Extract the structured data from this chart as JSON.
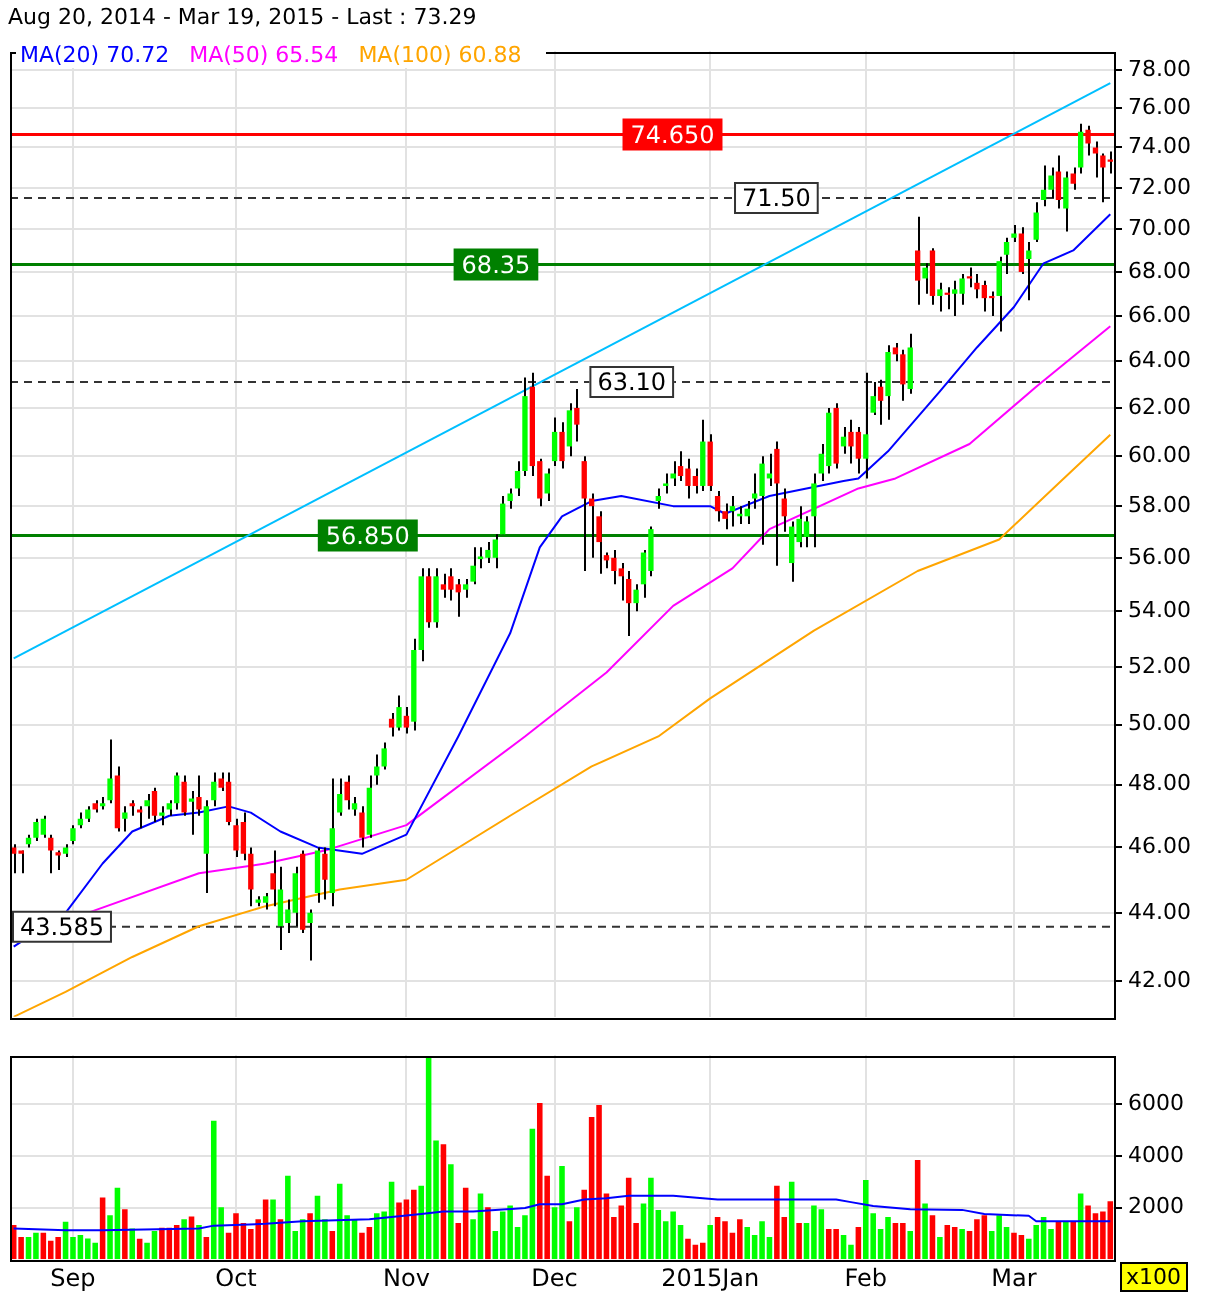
{
  "chart_data": [
    {
      "type": "candlestick",
      "title": "Aug 20, 2014 - Mar 19, 2015 - Last : 73.29",
      "categories": [
        null,
        null,
        null,
        null,
        null,
        null,
        null,
        null,
        null,
        null,
        null,
        null,
        null,
        null,
        null,
        null,
        null,
        null,
        null,
        null,
        null,
        null,
        null,
        null,
        null,
        null,
        null,
        null,
        null,
        null,
        null,
        null,
        null,
        null,
        null,
        null,
        null,
        null,
        null,
        null,
        null,
        null,
        null,
        null,
        null,
        null,
        null,
        null,
        null,
        null,
        null,
        null,
        null,
        null,
        null,
        null,
        null,
        null,
        null,
        null,
        null,
        null,
        null,
        null,
        null,
        null,
        null,
        null,
        null,
        null,
        null,
        null,
        null,
        null,
        null,
        null,
        null,
        null,
        null,
        null,
        null,
        null,
        null,
        null,
        null,
        null,
        null,
        null,
        null,
        null,
        null,
        null,
        null,
        null,
        null,
        null,
        null,
        null,
        null,
        null,
        null,
        null,
        null,
        null,
        null,
        null,
        null,
        null,
        null,
        null,
        null,
        null,
        null,
        null,
        null,
        null,
        null,
        null,
        null,
        null,
        null,
        null,
        null,
        null,
        null,
        null,
        null,
        null,
        null,
        null,
        null,
        null,
        null,
        null,
        null,
        null,
        null,
        null,
        null,
        null,
        null,
        null,
        null,
        null,
        null,
        null,
        null,
        null,
        null
      ],
      "ohlc": [
        [
          46.0,
          46.1,
          45.2,
          45.8
        ],
        [
          45.9,
          45.9,
          45.2,
          45.8
        ],
        [
          46.1,
          46.4,
          46.0,
          46.3
        ],
        [
          46.3,
          46.9,
          46.2,
          46.8
        ],
        [
          46.4,
          47.0,
          46.3,
          46.9
        ],
        [
          46.3,
          46.4,
          45.2,
          45.9
        ],
        [
          45.85,
          45.9,
          45.3,
          45.75
        ],
        [
          45.8,
          46.1,
          45.7,
          46.0
        ],
        [
          46.2,
          46.7,
          46.1,
          46.6
        ],
        [
          46.7,
          47.1,
          46.6,
          46.9
        ],
        [
          46.9,
          47.3,
          46.8,
          47.2
        ],
        [
          47.4,
          47.5,
          47.1,
          47.2
        ],
        [
          47.3,
          47.6,
          47.2,
          47.4
        ],
        [
          47.5,
          49.5,
          47.4,
          48.2
        ],
        [
          48.3,
          48.6,
          46.5,
          46.6
        ],
        [
          46.9,
          47.3,
          46.5,
          47.1
        ],
        [
          47.4,
          47.5,
          47.0,
          47.3
        ],
        [
          47.2,
          47.3,
          46.6,
          47.1
        ],
        [
          47.3,
          47.7,
          46.9,
          47.5
        ],
        [
          47.8,
          47.9,
          46.8,
          47.0
        ],
        [
          47.0,
          47.3,
          46.7,
          47.1
        ],
        [
          47.2,
          47.5,
          47.0,
          47.4
        ],
        [
          47.4,
          48.4,
          47.2,
          48.3
        ],
        [
          48.1,
          48.3,
          47.0,
          47.1
        ],
        [
          47.45,
          47.8,
          46.4,
          47.55
        ],
        [
          47.6,
          48.3,
          47.0,
          47.2
        ],
        [
          45.8,
          47.5,
          44.6,
          47.3
        ],
        [
          47.5,
          48.4,
          47.3,
          48.1
        ],
        [
          48.2,
          48.4,
          47.8,
          47.9
        ],
        [
          48.1,
          48.4,
          46.7,
          46.8
        ],
        [
          46.7,
          46.9,
          45.7,
          45.9
        ],
        [
          46.8,
          47.1,
          45.6,
          45.8
        ],
        [
          45.8,
          46.0,
          44.2,
          44.7
        ],
        [
          44.3,
          44.5,
          44.2,
          44.4
        ],
        [
          44.3,
          44.6,
          44.1,
          44.5
        ],
        [
          45.2,
          45.9,
          44.2,
          44.7
        ],
        [
          43.6,
          45.4,
          42.9,
          44.7
        ],
        [
          43.7,
          44.4,
          43.4,
          44.1
        ],
        [
          44.0,
          45.4,
          43.6,
          45.2
        ],
        [
          45.8,
          45.9,
          43.4,
          43.5
        ],
        [
          43.7,
          44.1,
          42.6,
          44.0
        ],
        [
          44.6,
          46.0,
          44.3,
          45.9
        ],
        [
          45.8,
          46.0,
          44.4,
          45.0
        ],
        [
          44.6,
          48.2,
          44.2,
          46.6
        ],
        [
          47.1,
          48.2,
          47.0,
          47.7
        ],
        [
          48.1,
          48.3,
          47.2,
          47.5
        ],
        [
          47.2,
          47.6,
          47.0,
          47.4
        ],
        [
          47.1,
          47.3,
          46.0,
          46.3
        ],
        [
          46.4,
          48.3,
          46.3,
          47.9
        ],
        [
          48.3,
          49.0,
          48.0,
          48.6
        ],
        [
          48.6,
          49.4,
          48.5,
          49.2
        ],
        [
          50.2,
          50.4,
          49.6,
          49.9
        ],
        [
          49.9,
          51.0,
          49.8,
          50.6
        ],
        [
          50.3,
          50.6,
          49.7,
          49.9
        ],
        [
          50.1,
          53.0,
          49.8,
          52.6
        ],
        [
          52.6,
          55.6,
          52.2,
          55.3
        ],
        [
          55.3,
          55.6,
          53.4,
          53.6
        ],
        [
          53.6,
          55.6,
          53.4,
          55.3
        ],
        [
          55.0,
          55.4,
          54.5,
          54.8
        ],
        [
          55.3,
          55.6,
          54.4,
          54.8
        ],
        [
          55.0,
          55.2,
          53.8,
          54.7
        ],
        [
          54.8,
          55.2,
          54.5,
          55.0
        ],
        [
          55.1,
          56.4,
          55.0,
          55.7
        ],
        [
          55.95,
          56.4,
          55.6,
          56.05
        ],
        [
          56.0,
          56.6,
          55.8,
          56.3
        ],
        [
          56.0,
          56.9,
          55.6,
          56.7
        ],
        [
          56.9,
          58.4,
          56.9,
          58.1
        ],
        [
          58.2,
          58.7,
          57.9,
          58.5
        ],
        [
          58.7,
          59.8,
          58.4,
          59.4
        ],
        [
          59.4,
          63.3,
          59.2,
          62.5
        ],
        [
          62.9,
          63.5,
          59.2,
          59.6
        ],
        [
          59.8,
          59.9,
          58.0,
          58.3
        ],
        [
          58.5,
          59.5,
          58.2,
          59.3
        ],
        [
          59.8,
          61.6,
          59.6,
          61.0
        ],
        [
          61.0,
          61.4,
          59.5,
          59.8
        ],
        [
          60.4,
          62.2,
          60.0,
          61.9
        ],
        [
          62.0,
          62.8,
          60.6,
          61.3
        ],
        [
          59.8,
          60.0,
          55.5,
          58.3
        ],
        [
          58.3,
          58.5,
          56.0,
          58.0
        ],
        [
          57.6,
          57.8,
          55.4,
          56.6
        ],
        [
          56.1,
          56.2,
          55.6,
          55.9
        ],
        [
          56.0,
          56.3,
          55.0,
          55.5
        ],
        [
          55.6,
          55.8,
          54.4,
          55.3
        ],
        [
          55.2,
          55.5,
          53.1,
          54.3
        ],
        [
          54.3,
          55.0,
          54.0,
          54.8
        ],
        [
          55.0,
          56.3,
          54.5,
          56.2
        ],
        [
          55.5,
          57.2,
          55.3,
          57.1
        ],
        [
          58.2,
          58.7,
          57.9,
          58.4
        ],
        [
          58.8,
          59.3,
          58.5,
          58.9
        ],
        [
          59.1,
          59.8,
          58.8,
          59.3
        ],
        [
          59.6,
          60.2,
          59.0,
          59.2
        ],
        [
          59.5,
          59.9,
          58.3,
          58.8
        ],
        [
          59.2,
          59.5,
          58.5,
          58.8
        ],
        [
          58.8,
          61.5,
          58.6,
          60.6
        ],
        [
          60.6,
          60.9,
          58.6,
          58.8
        ],
        [
          58.4,
          58.6,
          57.4,
          57.8
        ],
        [
          57.8,
          58.1,
          57.1,
          57.5
        ],
        [
          57.8,
          58.4,
          57.2,
          58.0
        ],
        [
          57.6,
          58.0,
          57.3,
          57.7
        ],
        [
          57.6,
          58.2,
          57.3,
          57.9
        ],
        [
          58.3,
          59.3,
          57.9,
          58.5
        ],
        [
          58.4,
          60.0,
          56.5,
          59.7
        ],
        [
          59.1,
          60.1,
          58.8,
          59.3
        ],
        [
          60.3,
          60.6,
          55.7,
          58.9
        ],
        [
          58.3,
          58.7,
          57.0,
          57.6
        ],
        [
          55.8,
          57.4,
          55.1,
          57.2
        ],
        [
          56.6,
          58.0,
          56.4,
          57.5
        ],
        [
          56.8,
          57.6,
          56.4,
          57.4
        ],
        [
          57.6,
          59.3,
          56.4,
          58.9
        ],
        [
          59.3,
          60.5,
          59.0,
          60.1
        ],
        [
          59.6,
          62.0,
          59.3,
          61.8
        ],
        [
          62.0,
          62.2,
          59.5,
          59.7
        ],
        [
          60.4,
          61.2,
          60.1,
          60.8
        ],
        [
          61.0,
          61.5,
          59.7,
          60.4
        ],
        [
          61.0,
          61.2,
          59.3,
          59.9
        ],
        [
          59.9,
          63.5,
          59.1,
          60.9
        ],
        [
          61.8,
          63.1,
          61.7,
          62.5
        ],
        [
          62.9,
          63.2,
          61.3,
          62.3
        ],
        [
          62.5,
          64.7,
          61.5,
          64.4
        ],
        [
          64.6,
          64.8,
          64.0,
          64.3
        ],
        [
          64.3,
          64.5,
          62.3,
          63.0
        ],
        [
          62.8,
          65.2,
          62.6,
          64.6
        ],
        [
          69.0,
          70.6,
          66.5,
          67.6
        ],
        [
          67.7,
          68.4,
          67.0,
          68.2
        ],
        [
          69.0,
          69.1,
          66.5,
          66.9
        ],
        [
          66.9,
          67.5,
          66.2,
          67.2
        ],
        [
          67.05,
          67.3,
          66.3,
          66.95
        ],
        [
          67.0,
          67.6,
          66.0,
          67.2
        ],
        [
          67.0,
          67.9,
          66.5,
          67.7
        ],
        [
          67.8,
          68.2,
          67.3,
          67.7
        ],
        [
          67.5,
          67.9,
          66.8,
          67.2
        ],
        [
          67.4,
          67.6,
          66.2,
          66.8
        ],
        [
          66.9,
          67.1,
          66.0,
          66.8
        ],
        [
          66.9,
          68.7,
          65.3,
          68.5
        ],
        [
          68.8,
          69.6,
          67.9,
          69.4
        ],
        [
          69.6,
          70.2,
          69.4,
          69.8
        ],
        [
          69.8,
          70.1,
          67.9,
          68.0
        ],
        [
          68.6,
          69.4,
          66.7,
          69.0
        ],
        [
          69.5,
          71.3,
          69.4,
          70.8
        ],
        [
          71.4,
          73.1,
          71.1,
          71.9
        ],
        [
          71.9,
          73.0,
          71.5,
          72.6
        ],
        [
          72.8,
          73.6,
          71.0,
          71.4
        ],
        [
          71.0,
          72.8,
          69.9,
          72.5
        ],
        [
          72.7,
          73.0,
          71.9,
          72.2
        ],
        [
          73.0,
          75.2,
          72.7,
          74.8
        ],
        [
          74.9,
          75.1,
          73.6,
          74.2
        ],
        [
          74.0,
          74.3,
          72.5,
          73.7
        ],
        [
          73.6,
          73.7,
          71.3,
          73.0
        ],
        [
          73.4,
          73.8,
          72.7,
          73.29
        ]
      ],
      "series": [
        {
          "type": "line",
          "name": "MA(20) 70.72",
          "color": "#0000ff",
          "values": [
            43.0,
            null,
            null,
            null,
            null,
            null,
            null,
            44.0,
            null,
            null,
            null,
            null,
            45.5,
            null,
            null,
            null,
            46.5,
            null,
            null,
            null,
            null,
            47.0,
            null,
            null,
            null,
            47.1,
            null,
            null,
            null,
            47.3,
            null,
            null,
            47.1,
            null,
            null,
            null,
            46.5,
            null,
            null,
            null,
            null,
            46.0,
            null,
            null,
            null,
            null,
            null,
            45.8,
            null,
            null,
            null,
            null,
            null,
            46.4,
            null,
            null,
            null,
            null,
            null,
            null,
            49.6,
            null,
            null,
            null,
            null,
            null,
            null,
            53.2,
            null,
            null,
            null,
            56.4,
            null,
            null,
            57.6,
            null,
            null,
            null,
            58.2,
            null,
            null,
            null,
            58.4,
            null,
            null,
            null,
            null,
            null,
            null,
            58.0,
            null,
            null,
            null,
            null,
            58.0,
            null,
            57.7,
            null,
            null,
            null,
            null,
            null,
            58.4,
            null,
            null,
            null,
            null,
            58.7,
            null,
            null,
            null,
            null,
            59.0,
            null,
            59.1,
            null,
            null,
            null,
            60.2,
            null,
            null,
            null,
            null,
            null,
            null,
            62.7,
            null,
            null,
            null,
            null,
            64.6,
            null,
            null,
            null,
            null,
            66.4,
            null,
            null,
            null,
            68.4,
            null,
            null,
            null,
            69.0,
            null,
            null,
            null,
            null,
            70.72
          ]
        },
        {
          "type": "line",
          "name": "MA(50) 65.54",
          "color": "#ff00ff",
          "values": [
            null,
            null,
            null,
            null,
            null,
            null,
            null,
            null,
            null,
            null,
            44.0,
            null,
            null,
            null,
            null,
            null,
            null,
            null,
            null,
            null,
            null,
            null,
            null,
            null,
            null,
            45.2,
            null,
            null,
            null,
            null,
            null,
            null,
            null,
            null,
            45.5,
            null,
            null,
            null,
            null,
            null,
            null,
            null,
            45.9,
            null,
            null,
            null,
            null,
            null,
            null,
            null,
            null,
            null,
            null,
            46.7,
            null,
            null,
            null,
            null,
            null,
            null,
            null,
            null,
            null,
            null,
            null,
            null,
            null,
            null,
            null,
            49.6,
            null,
            null,
            null,
            null,
            null,
            null,
            null,
            null,
            null,
            null,
            51.8,
            null,
            null,
            null,
            null,
            null,
            null,
            null,
            null,
            54.2,
            null,
            null,
            null,
            null,
            null,
            null,
            null,
            55.6,
            null,
            null,
            null,
            null,
            57.1,
            null,
            null,
            null,
            null,
            null,
            null,
            null,
            null,
            null,
            null,
            null,
            58.7,
            null,
            null,
            null,
            null,
            59.1,
            null,
            null,
            null,
            null,
            null,
            null,
            null,
            null,
            null,
            60.5,
            null,
            null,
            null,
            null,
            null,
            null,
            null,
            null,
            62.9,
            null,
            null,
            null,
            null,
            null,
            null,
            null,
            null,
            null,
            65.54
          ]
        },
        {
          "type": "line",
          "name": "MA(100) 60.88",
          "color": "#ffa500",
          "values": [
            41.0,
            null,
            null,
            null,
            null,
            null,
            null,
            41.7,
            null,
            null,
            null,
            null,
            null,
            null,
            null,
            null,
            42.7,
            null,
            null,
            null,
            null,
            null,
            null,
            null,
            null,
            43.6,
            null,
            null,
            null,
            null,
            null,
            null,
            null,
            null,
            44.2,
            null,
            null,
            null,
            null,
            null,
            null,
            null,
            null,
            null,
            44.7,
            null,
            null,
            null,
            null,
            null,
            null,
            null,
            null,
            45.0,
            null,
            null,
            null,
            null,
            null,
            null,
            null,
            null,
            null,
            null,
            null,
            null,
            null,
            47.0,
            null,
            null,
            null,
            null,
            null,
            null,
            null,
            null,
            null,
            null,
            48.6,
            null,
            null,
            null,
            null,
            null,
            null,
            null,
            null,
            49.6,
            null,
            null,
            null,
            null,
            null,
            null,
            50.9,
            null,
            null,
            null,
            null,
            null,
            null,
            null,
            null,
            null,
            null,
            null,
            null,
            null,
            53.3,
            null,
            null,
            null,
            null,
            null,
            null,
            null,
            null,
            null,
            null,
            null,
            null,
            null,
            55.5,
            null,
            null,
            null,
            null,
            null,
            null,
            null,
            null,
            null,
            null,
            56.7,
            null,
            null,
            null,
            null,
            null,
            null,
            null,
            58.9,
            null,
            null,
            null,
            null,
            null,
            null,
            60.88
          ]
        },
        {
          "type": "line",
          "color": "#00bfff",
          "values": [
            52.3,
            null,
            null,
            null,
            null,
            null,
            null,
            null,
            null,
            null,
            null,
            null,
            null,
            null,
            null,
            null,
            null,
            null,
            null,
            null,
            null,
            null,
            null,
            null,
            null,
            null,
            null,
            null,
            null,
            null,
            null,
            null,
            null,
            null,
            null,
            null,
            null,
            null,
            null,
            null,
            null,
            null,
            null,
            null,
            null,
            null,
            null,
            null,
            null,
            null,
            null,
            null,
            null,
            null,
            null,
            null,
            null,
            null,
            null,
            null,
            null,
            null,
            null,
            null,
            null,
            null,
            null,
            null,
            null,
            null,
            null,
            null,
            null,
            null,
            null,
            null,
            null,
            null,
            null,
            null,
            null,
            null,
            null,
            null,
            null,
            null,
            null,
            null,
            null,
            null,
            null,
            null,
            null,
            null,
            null,
            null,
            null,
            null,
            null,
            null,
            null,
            null,
            null,
            null,
            null,
            null,
            null,
            null,
            null,
            null,
            null,
            null,
            null,
            null,
            null,
            null,
            null,
            null,
            null,
            null,
            null,
            null,
            null,
            null,
            null,
            null,
            null,
            null,
            null,
            null,
            null,
            null,
            null,
            null,
            null,
            null,
            null,
            null,
            null,
            null,
            null,
            null,
            null,
            null,
            null,
            null,
            null,
            null,
            77.3
          ]
        }
      ],
      "ylim": [
        41,
        79
      ],
      "yticks": [
        {
          "value": 42,
          "label": "42.00"
        },
        {
          "value": 44,
          "label": "44.00"
        },
        {
          "value": 46,
          "label": "46.00"
        },
        {
          "value": 48,
          "label": "48.00"
        },
        {
          "value": 50,
          "label": "50.00"
        },
        {
          "value": 52,
          "label": "52.00"
        },
        {
          "value": 54,
          "label": "54.00"
        },
        {
          "value": 56,
          "label": "56.00"
        },
        {
          "value": 58,
          "label": "58.00"
        },
        {
          "value": 60,
          "label": "60.00"
        },
        {
          "value": 62,
          "label": "62.00"
        },
        {
          "value": 64,
          "label": "64.00"
        },
        {
          "value": 66,
          "label": "66.00"
        },
        {
          "value": 68,
          "label": "68.00"
        },
        {
          "value": 70,
          "label": "70.00"
        },
        {
          "value": 72,
          "label": "72.00"
        },
        {
          "value": 74,
          "label": "74.00"
        },
        {
          "value": 76,
          "label": "76.00"
        },
        {
          "value": 78,
          "label": "78.00"
        }
      ],
      "log": true,
      "grid": true,
      "legend": "top left",
      "tick_labels": "y",
      "ref_lines": [
        {
          "axis": "y",
          "value": 74.65,
          "label": "74.650",
          "color": "#ff0000",
          "line_style": "solid"
        },
        {
          "axis": "y",
          "value": 71.5,
          "label": "71.50",
          "color": "#333333",
          "line_style": "dashed"
        },
        {
          "axis": "y",
          "value": 68.35,
          "label": "68.35",
          "color": "#008000",
          "line_style": "solid"
        },
        {
          "axis": "y",
          "value": 63.1,
          "label": "63.10",
          "color": "#333333",
          "line_style": "dashed"
        },
        {
          "axis": "y",
          "value": 56.85,
          "label": "56.850",
          "color": "#008000",
          "line_style": "solid"
        },
        {
          "axis": "y",
          "value": 43.585,
          "label": "43.585",
          "color": "#333333",
          "line_style": "dashed"
        }
      ]
    },
    {
      "type": "bar",
      "categories": [
        null,
        null,
        null,
        null,
        null,
        null,
        null,
        null,
        "Sep",
        null,
        null,
        null,
        null,
        null,
        null,
        null,
        null,
        null,
        null,
        null,
        null,
        null,
        null,
        null,
        null,
        null,
        null,
        null,
        null,
        null,
        "Oct",
        null,
        null,
        null,
        null,
        null,
        null,
        null,
        null,
        null,
        null,
        null,
        null,
        null,
        null,
        null,
        null,
        null,
        null,
        null,
        null,
        null,
        null,
        "Nov",
        null,
        null,
        null,
        null,
        null,
        null,
        null,
        null,
        null,
        null,
        null,
        null,
        null,
        null,
        null,
        null,
        null,
        null,
        null,
        "Dec",
        null,
        null,
        null,
        null,
        null,
        null,
        null,
        null,
        null,
        null,
        null,
        null,
        null,
        null,
        null,
        null,
        null,
        null,
        null,
        null,
        "2015Jan",
        null,
        null,
        null,
        null,
        null,
        null,
        null,
        null,
        null,
        null,
        null,
        null,
        null,
        null,
        null,
        null,
        null,
        null,
        null,
        null,
        "Feb",
        null,
        null,
        null,
        null,
        null,
        null,
        null,
        null,
        null,
        null,
        null,
        null,
        null,
        null,
        null,
        null,
        null,
        null,
        null,
        "Mar",
        null,
        null,
        null,
        null,
        null,
        null,
        null,
        null,
        null,
        null,
        null,
        null,
        null
      ],
      "series": [
        {
          "type": "bar",
          "values": [
            1320,
            860,
            860,
            1020,
            1020,
            710,
            860,
            1450,
            860,
            940,
            800,
            640,
            2390,
            1700,
            2770,
            1930,
            1190,
            790,
            640,
            1090,
            1220,
            1220,
            1320,
            1550,
            1650,
            1320,
            860,
            5360,
            2010,
            1020,
            1780,
            1400,
            1170,
            1550,
            2310,
            2310,
            1550,
            3230,
            1090,
            1550,
            1780,
            2460,
            1550,
            1090,
            2920,
            1700,
            1550,
            1020,
            1250,
            1780,
            1850,
            3000,
            2200,
            2310,
            2690,
            2840,
            7800,
            4600,
            4450,
            3680,
            1400,
            2770,
            1550,
            2540,
            2010,
            1090,
            1850,
            2080,
            1250,
            1700,
            5050,
            6050,
            3230,
            2010,
            3610,
            1470,
            2010,
            2690,
            5510,
            5970,
            2540,
            1630,
            2080,
            3150,
            1400,
            2160,
            3150,
            1910,
            1470,
            1850,
            1320,
            790,
            560,
            640,
            1320,
            1630,
            1470,
            1020,
            1550,
            1250,
            940,
            1470,
            860,
            2840,
            1630,
            3000,
            1400,
            1400,
            2080,
            1930,
            1170,
            1170,
            940,
            560,
            1250,
            3070,
            1780,
            1170,
            1630,
            1400,
            1400,
            1090,
            3840,
            2160,
            1700,
            860,
            1320,
            1250,
            1170,
            1090,
            1550,
            1700,
            1090,
            1700,
            1250,
            1020,
            940,
            790,
            1320,
            1630,
            1170,
            1470,
            1470,
            1470,
            2540,
            2080,
            1780,
            1850,
            2240
          ],
          "colors": [
            "#ff0000",
            "#ff0000",
            "#00ff00",
            "#00ff00",
            "#ff0000",
            "#ff0000",
            "#ff0000",
            "#00ff00",
            "#00ff00",
            "#00ff00",
            "#00ff00",
            "#00ff00",
            "#ff0000",
            "#00ff00",
            "#00ff00",
            "#ff0000",
            "#00ff00",
            "#ff0000",
            "#00ff00",
            "#00ff00",
            "#ff0000",
            "#ff0000",
            "#ff0000",
            "#00ff00",
            "#ff0000",
            "#00ff00",
            "#ff0000",
            "#00ff00",
            "#00ff00",
            "#ff0000",
            "#ff0000",
            "#ff0000",
            "#ff0000",
            "#ff0000",
            "#ff0000",
            "#00ff00",
            "#ff0000",
            "#00ff00",
            "#00ff00",
            "#00ff00",
            "#ff0000",
            "#00ff00",
            "#00ff00",
            "#ff0000",
            "#00ff00",
            "#00ff00",
            "#00ff00",
            "#ff0000",
            "#ff0000",
            "#00ff00",
            "#00ff00",
            "#00ff00",
            "#ff0000",
            "#ff0000",
            "#ff0000",
            "#00ff00",
            "#00ff00",
            "#00ff00",
            "#ff0000",
            "#00ff00",
            "#ff0000",
            "#ff0000",
            "#00ff00",
            "#00ff00",
            "#ff0000",
            "#00ff00",
            "#00ff00",
            "#00ff00",
            "#00ff00",
            "#00ff00",
            "#00ff00",
            "#ff0000",
            "#ff0000",
            "#00ff00",
            "#00ff00",
            "#ff0000",
            "#00ff00",
            "#ff0000",
            "#ff0000",
            "#ff0000",
            "#ff0000",
            "#ff0000",
            "#ff0000",
            "#ff0000",
            "#ff0000",
            "#00ff00",
            "#00ff00",
            "#00ff00",
            "#00ff00",
            "#00ff00",
            "#00ff00",
            "#ff0000",
            "#ff0000",
            "#ff0000",
            "#00ff00",
            "#ff0000",
            "#ff0000",
            "#ff0000",
            "#ff0000",
            "#00ff00",
            "#00ff00",
            "#00ff00",
            "#00ff00",
            "#ff0000",
            "#ff0000",
            "#00ff00",
            "#ff0000",
            "#00ff00",
            "#00ff00",
            "#00ff00",
            "#ff0000",
            "#ff0000",
            "#00ff00",
            "#00ff00",
            "#ff0000",
            "#00ff00",
            "#00ff00",
            "#00ff00",
            "#00ff00",
            "#ff0000",
            "#ff0000",
            "#00ff00",
            "#ff0000",
            "#00ff00",
            "#ff0000",
            "#00ff00",
            "#ff0000",
            "#ff0000",
            "#00ff00",
            "#ff0000",
            "#ff0000",
            "#ff0000",
            "#00ff00",
            "#00ff00",
            "#00ff00",
            "#ff0000",
            "#ff0000",
            "#00ff00",
            "#00ff00",
            "#00ff00",
            "#00ff00",
            "#ff0000",
            "#00ff00",
            "#ff0000",
            "#00ff00",
            "#ff0000",
            "#ff0000",
            "#ff0000",
            "#ff0000"
          ]
        },
        {
          "type": "line",
          "color": "#0000ff",
          "values": [
            1190,
            null,
            null,
            null,
            null,
            null,
            null,
            1120,
            null,
            null,
            null,
            null,
            1120,
            null,
            null,
            null,
            null,
            null,
            null,
            null,
            null,
            null,
            null,
            null,
            null,
            1190,
            null,
            1300,
            null,
            null,
            null,
            null,
            null,
            null,
            1370,
            null,
            null,
            null,
            null,
            1470,
            null,
            null,
            null,
            null,
            null,
            null,
            null,
            null,
            1550,
            null,
            null,
            null,
            null,
            null,
            null,
            1750,
            null,
            null,
            1850,
            null,
            null,
            null,
            1850,
            null,
            null,
            null,
            null,
            null,
            null,
            1980,
            null,
            2130,
            null,
            null,
            2130,
            null,
            null,
            2310,
            null,
            null,
            2360,
            null,
            null,
            2460,
            null,
            null,
            null,
            null,
            null,
            2460,
            null,
            null,
            null,
            null,
            null,
            2310,
            null,
            null,
            null,
            null,
            null,
            null,
            null,
            null,
            null,
            null,
            null,
            null,
            null,
            null,
            null,
            2310,
            null,
            2210,
            null,
            null,
            2060,
            null,
            null,
            null,
            null,
            1930,
            null,
            null,
            null,
            null,
            null,
            null,
            1910,
            null,
            null,
            1750,
            null,
            null,
            null,
            null,
            null,
            1680,
            1470,
            null,
            null,
            null,
            null,
            null,
            null,
            null,
            null,
            null,
            1470
          ]
        }
      ],
      "ylim": [
        0,
        7900
      ],
      "yticks": [
        2000,
        4000,
        6000
      ],
      "grid": true,
      "annotations": [
        "x100"
      ]
    }
  ]
}
